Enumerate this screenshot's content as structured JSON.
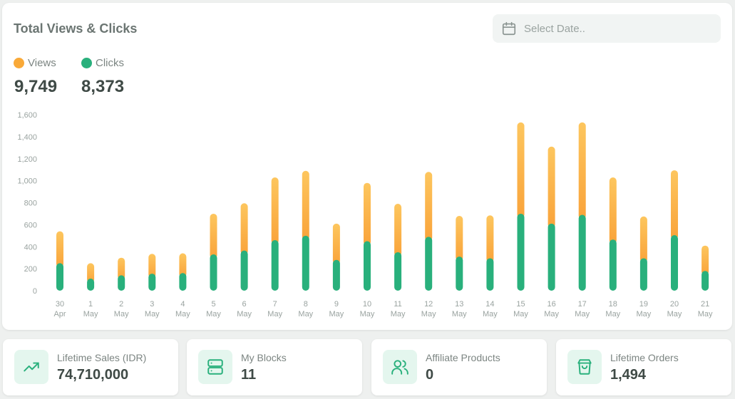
{
  "header": {
    "title": "Total Views & Clicks",
    "date_placeholder": "Select Date.."
  },
  "legend": {
    "views": {
      "label": "Views",
      "total": "9,749",
      "color": "#f9a938"
    },
    "clicks": {
      "label": "Clicks",
      "total": "8,373",
      "color": "#29b07c"
    }
  },
  "chart_data": {
    "type": "bar",
    "stacked": true,
    "title": "Total Views & Clicks",
    "categories": [
      "30 Apr",
      "1 May",
      "2 May",
      "3 May",
      "4 May",
      "5 May",
      "6 May",
      "7 May",
      "8 May",
      "9 May",
      "10 May",
      "11 May",
      "12 May",
      "13 May",
      "14 May",
      "15 May",
      "16 May",
      "17 May",
      "18 May",
      "19 May",
      "20 May",
      "21 May"
    ],
    "category_lines": [
      [
        "30",
        "Apr"
      ],
      [
        "1",
        "May"
      ],
      [
        "2",
        "May"
      ],
      [
        "3",
        "May"
      ],
      [
        "4",
        "May"
      ],
      [
        "5",
        "May"
      ],
      [
        "6",
        "May"
      ],
      [
        "7",
        "May"
      ],
      [
        "8",
        "May"
      ],
      [
        "9",
        "May"
      ],
      [
        "10",
        "May"
      ],
      [
        "11",
        "May"
      ],
      [
        "12",
        "May"
      ],
      [
        "13",
        "May"
      ],
      [
        "14",
        "May"
      ],
      [
        "15",
        "May"
      ],
      [
        "16",
        "May"
      ],
      [
        "17",
        "May"
      ],
      [
        "18",
        "May"
      ],
      [
        "19",
        "May"
      ],
      [
        "20",
        "May"
      ],
      [
        "21",
        "May"
      ]
    ],
    "series": [
      {
        "name": "Clicks",
        "color": "#29b07c",
        "values": [
          250,
          110,
          140,
          155,
          160,
          330,
          365,
          460,
          500,
          280,
          450,
          350,
          490,
          310,
          295,
          700,
          610,
          690,
          465,
          295,
          505,
          180
        ]
      },
      {
        "name": "Views",
        "color": "#f9a938",
        "values": [
          290,
          140,
          160,
          180,
          180,
          370,
          430,
          570,
          590,
          330,
          530,
          440,
          590,
          370,
          390,
          830,
          700,
          840,
          565,
          380,
          590,
          230
        ]
      }
    ],
    "ylim": [
      0,
      1600
    ],
    "yticks": [
      0,
      200,
      400,
      600,
      800,
      1000,
      1200,
      1400,
      1600
    ],
    "ytick_labels": [
      "0",
      "200",
      "400",
      "600",
      "800",
      "1,000",
      "1,200",
      "1,400",
      "1,600"
    ],
    "grid": false,
    "legend_position": "top-left"
  },
  "stats": [
    {
      "label": "Lifetime Sales (IDR)",
      "value": "74,710,000",
      "icon": "trend-up-icon"
    },
    {
      "label": "My Blocks",
      "value": "11",
      "icon": "server-icon"
    },
    {
      "label": "Affiliate Products",
      "value": "0",
      "icon": "users-icon"
    },
    {
      "label": "Lifetime Orders",
      "value": "1,494",
      "icon": "shopping-bag-icon"
    }
  ],
  "colors": {
    "accent": "#29b07c",
    "icon_bg": "#e4f6ee"
  }
}
